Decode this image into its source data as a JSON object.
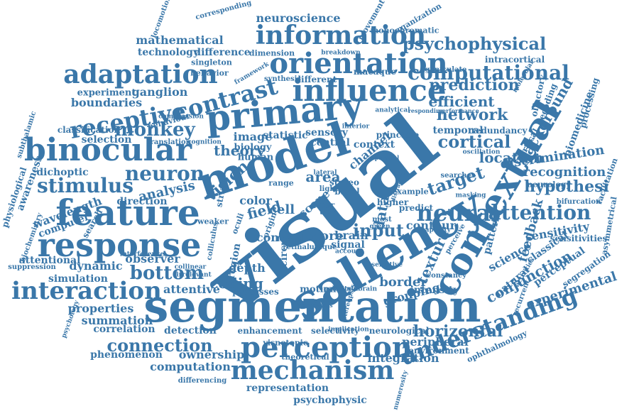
{
  "cloud": {
    "color": "#3a77a9",
    "background": "#ffffff",
    "words": [
      "visual",
      "saliency",
      "segmentation",
      "model",
      "contextual",
      "primary",
      "feature",
      "response",
      "binocular",
      "influence",
      "orientation",
      "perception",
      "information",
      "mechanism",
      "adaptation",
      "interaction",
      "contrast",
      "understanding",
      "attention",
      "neural",
      "computational",
      "psychophysical",
      "receptive",
      "stimulus",
      "neuron",
      "monkey",
      "network",
      "prediction",
      "efficient",
      "cortical",
      "target",
      "input",
      "vision",
      "bottom",
      "discrimination",
      "hypothesi",
      "recognition",
      "location",
      "conjunction",
      "experimental",
      "connection",
      "horizontal",
      "coding",
      "background",
      "theory",
      "neuroscience",
      "mathematical",
      "technology",
      "difference",
      "ganglion",
      "boundaries",
      "experiment",
      "selection",
      "classification",
      "wavelength",
      "dichoptic",
      "analysis",
      "computer",
      "attentional",
      "observer",
      "dynamic",
      "simulation",
      "properties",
      "summation",
      "correlation",
      "detection",
      "phenomenon",
      "ownership",
      "computation",
      "representation",
      "psychophysic",
      "integration",
      "peripheral",
      "environment",
      "selectivity",
      "enhancement",
      "neurological",
      "contour",
      "texture",
      "feedback",
      "sensitivity",
      "sensitivities",
      "perceptual",
      "segregation",
      "science",
      "natural",
      "classical",
      "attentive",
      "data",
      "border",
      "grouping",
      "intensity",
      "pattern",
      "field",
      "cell",
      "color",
      "area",
      "image",
      "statistic",
      "sensory",
      "central",
      "context",
      "principle",
      "channel",
      "biology",
      "human",
      "direction",
      "scene",
      "more",
      "brain",
      "signal",
      "depth",
      "region",
      "cone",
      "circuit",
      "match",
      "motion",
      "processes",
      "stereo",
      "basal",
      "higher",
      "predict",
      "example",
      "temporal",
      "redundancy",
      "intracortical",
      "dimension",
      "singleton",
      "behavior",
      "corresponding",
      "movement",
      "monochromatic",
      "organization",
      "breakdown",
      "macaque",
      "different",
      "synthesis",
      "framework",
      "awareness",
      "physiological",
      "subthalamic",
      "biochemistry",
      "suppression",
      "search",
      "striate",
      "colliculus",
      "psychology",
      "biomedicine",
      "processing",
      "vertical",
      "olfactory",
      "decoding",
      "neurology",
      "bifurcation",
      "facilitation",
      "asymmetrical",
      "ophthalmology",
      "theoretical",
      "visnotopic",
      "differencing",
      "numerosity",
      "geniculate",
      "molecular",
      "locomotion",
      "translation",
      "cognition",
      "compression",
      "behaviour",
      "searches",
      "masking",
      "capacity",
      "perceive",
      "constancy",
      "activities",
      "recurrent",
      "interference",
      "collinear",
      "retinal",
      "origin",
      "unique",
      "polarity",
      "midbrain",
      "stereopsis",
      "implication",
      "exogenous",
      "irrelevant",
      "weaker",
      "oculi",
      "most",
      "green",
      "light",
      "task",
      "bar",
      "range",
      "lateral",
      "account",
      "selective",
      "oscillation",
      "analytical",
      "responding",
      "performance",
      "inferior",
      "distractor",
      "parallel"
    ]
  }
}
